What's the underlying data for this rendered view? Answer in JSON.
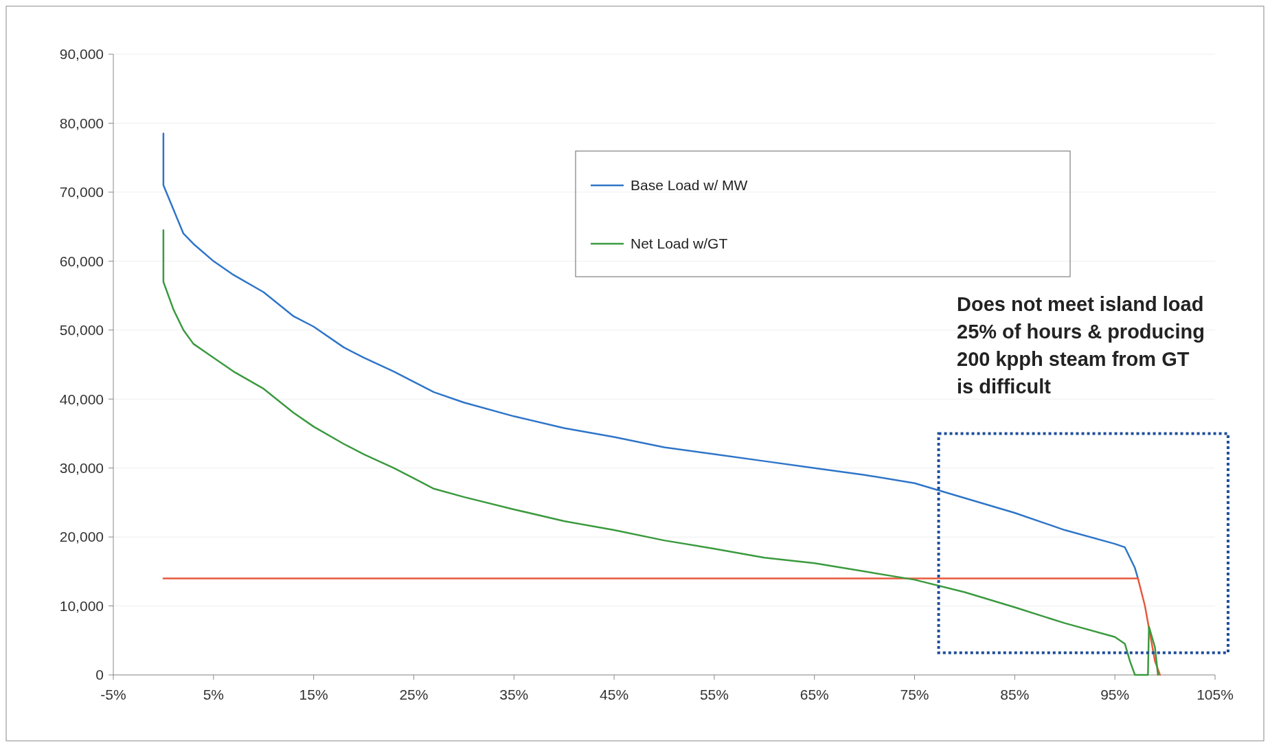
{
  "chart_data": {
    "type": "line",
    "xlim": [
      -5,
      105
    ],
    "xticks": [
      {
        "value": -5,
        "label": "-5%"
      },
      {
        "value": 5,
        "label": "5%"
      },
      {
        "value": 15,
        "label": "15%"
      },
      {
        "value": 25,
        "label": "25%"
      },
      {
        "value": 35,
        "label": "35%"
      },
      {
        "value": 45,
        "label": "45%"
      },
      {
        "value": 55,
        "label": "55%"
      },
      {
        "value": 65,
        "label": "65%"
      },
      {
        "value": 75,
        "label": "75%"
      },
      {
        "value": 85,
        "label": "85%"
      },
      {
        "value": 95,
        "label": "95%"
      },
      {
        "value": 105,
        "label": "105%"
      }
    ],
    "ylim": [
      0,
      90000
    ],
    "yticks": [
      {
        "value": 0,
        "label": "0"
      },
      {
        "value": 10000,
        "label": "10,000"
      },
      {
        "value": 20000,
        "label": "20,000"
      },
      {
        "value": 30000,
        "label": "30,000"
      },
      {
        "value": 40000,
        "label": "40,000"
      },
      {
        "value": 50000,
        "label": "50,000"
      },
      {
        "value": 60000,
        "label": "60,000"
      },
      {
        "value": 70000,
        "label": "70,000"
      },
      {
        "value": 80000,
        "label": "80,000"
      },
      {
        "value": 90000,
        "label": "90,000"
      }
    ],
    "grid": "y",
    "legend": "top",
    "series": [
      {
        "name": "Base Load w/ MW",
        "color": "#2e75c8",
        "x": [
          0,
          0,
          1,
          2,
          3,
          5,
          7,
          10,
          13,
          15,
          18,
          20,
          23,
          25,
          27,
          30,
          35,
          40,
          45,
          50,
          55,
          60,
          65,
          70,
          75,
          78,
          85,
          90,
          95,
          96,
          97,
          97.3
        ],
        "values": [
          78500,
          71000,
          67500,
          64000,
          62500,
          60000,
          58000,
          55500,
          52000,
          50500,
          47500,
          46000,
          44000,
          42500,
          41000,
          39500,
          37500,
          35800,
          34500,
          33000,
          32000,
          31000,
          30000,
          29000,
          27800,
          26500,
          23500,
          21000,
          19000,
          18500,
          15500,
          14000
        ]
      },
      {
        "color": "#e8583a",
        "x": [
          0,
          97.3,
          98,
          98.5,
          99,
          99.5
        ],
        "values": [
          14000,
          14000,
          10000,
          6000,
          2000,
          0
        ]
      },
      {
        "name": "Net Load w/GT",
        "color": "#3a9a3e",
        "x": [
          0,
          0,
          1,
          2,
          3,
          5,
          7,
          10,
          13,
          15,
          18,
          20,
          23,
          25,
          27,
          30,
          35,
          40,
          45,
          50,
          55,
          60,
          65,
          70,
          75,
          80,
          85,
          90,
          95,
          96,
          96.5,
          97,
          98.3,
          98.4,
          99,
          99.3
        ],
        "values": [
          64500,
          57000,
          53000,
          50000,
          48000,
          46000,
          44000,
          41500,
          38000,
          36000,
          33500,
          32000,
          30000,
          28500,
          27000,
          25800,
          24000,
          22300,
          21000,
          19500,
          18300,
          17000,
          16200,
          15000,
          13800,
          12000,
          9800,
          7500,
          5500,
          4500,
          2000,
          0,
          0,
          7000,
          4000,
          0
        ]
      }
    ],
    "annotations": [
      "Does not meet island load\n25% of hours & producing\n200 kpph steam from GT\nis difficult"
    ]
  }
}
